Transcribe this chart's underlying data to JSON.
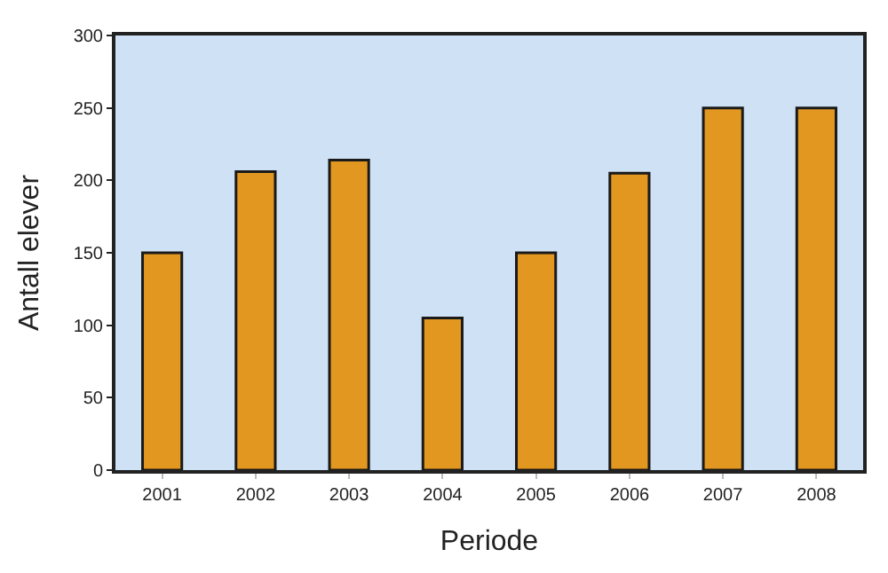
{
  "chart_data": {
    "type": "bar",
    "xlabel": "Periode",
    "ylabel": "Antall elever",
    "categories": [
      "2001",
      "2002",
      "2003",
      "2004",
      "2005",
      "2006",
      "2007",
      "2008"
    ],
    "values": [
      150,
      206,
      214,
      105,
      150,
      205,
      250,
      250
    ],
    "color": "#e29720",
    "ylim": [
      0,
      300
    ],
    "yticks": [
      0,
      50,
      100,
      150,
      200,
      250,
      300
    ],
    "grid": false,
    "legend": false
  }
}
